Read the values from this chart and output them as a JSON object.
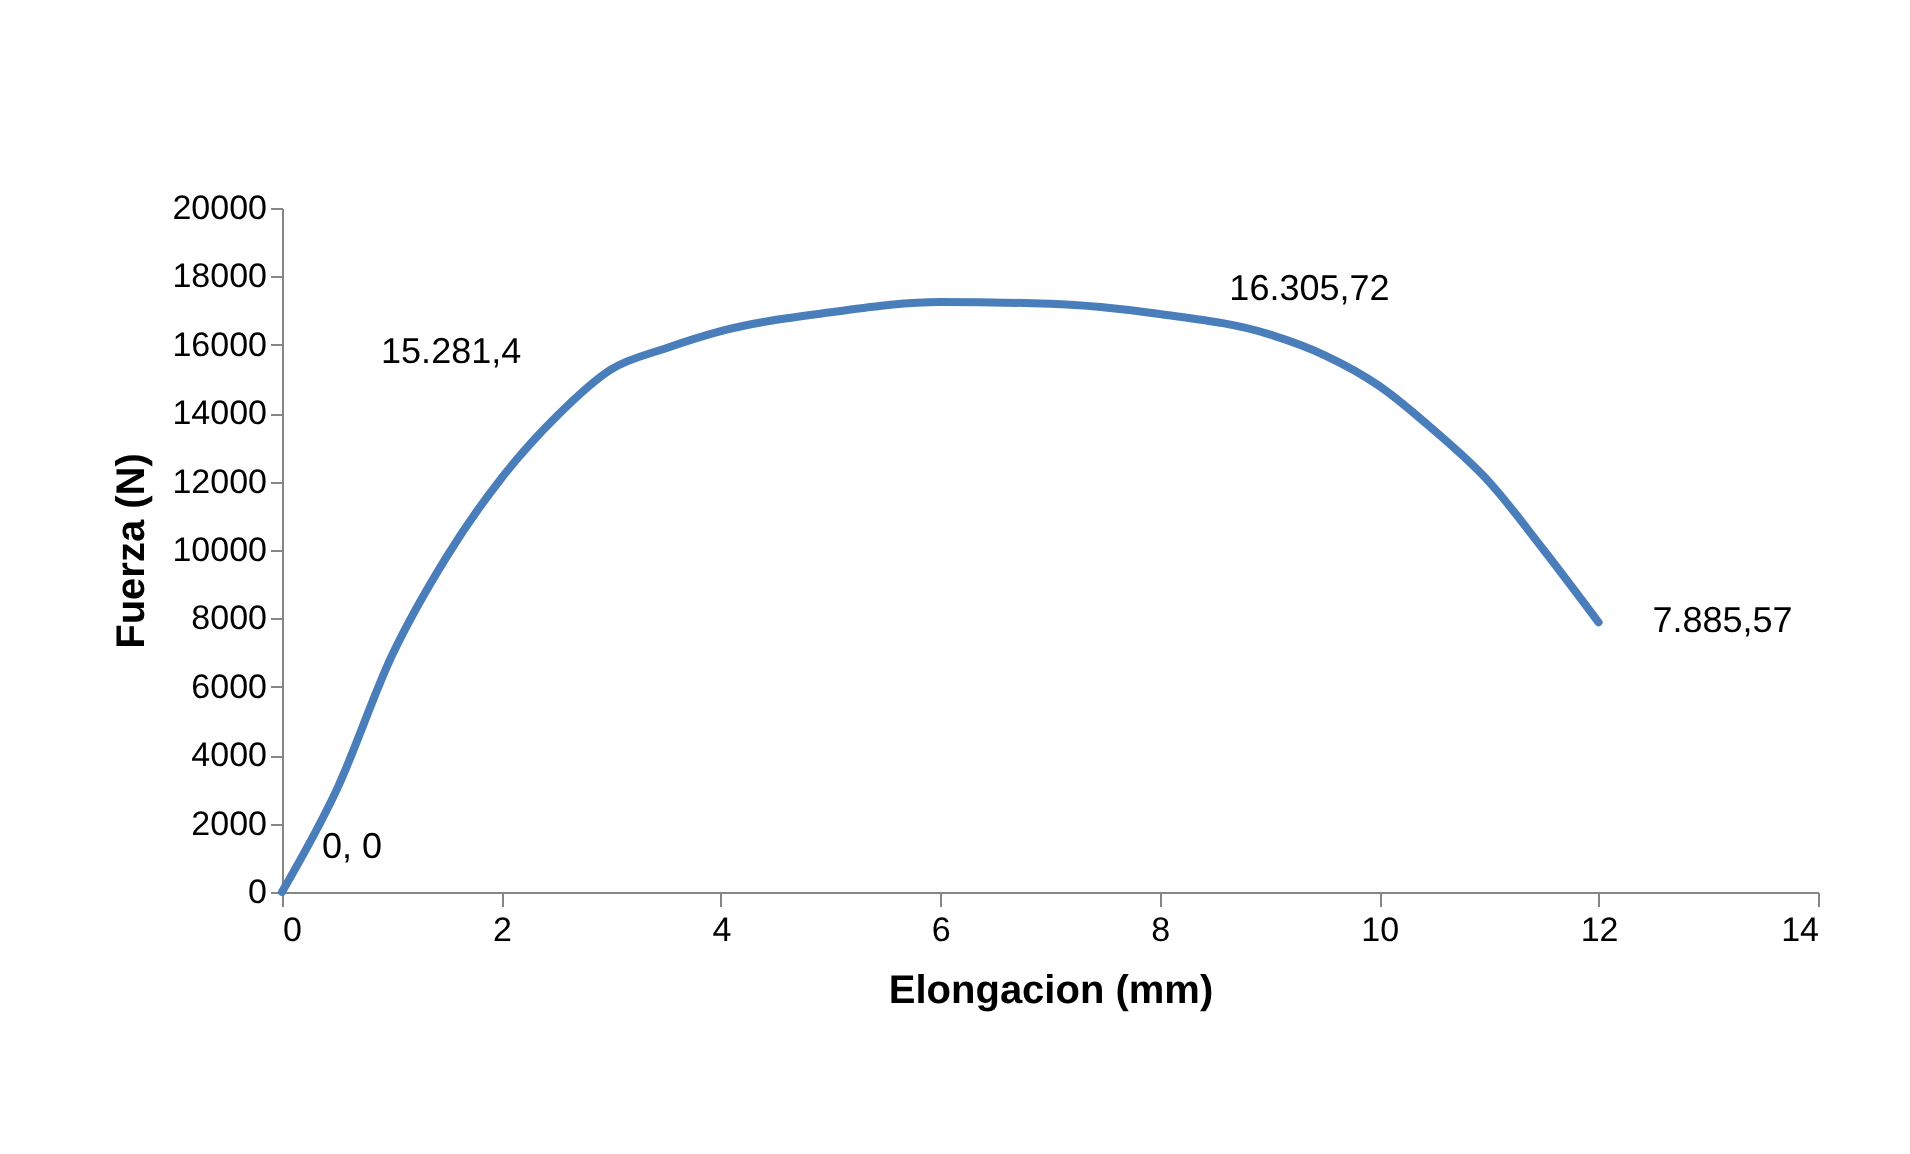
{
  "chart_data": {
    "type": "line",
    "xlabel": "Elongacion (mm)",
    "ylabel": "Fuerza (N)",
    "x": [
      0,
      0.5,
      1,
      1.5,
      2,
      2.5,
      3,
      3.5,
      4,
      5,
      6,
      7,
      8,
      9,
      9.5,
      10,
      10.5,
      11,
      11.5,
      12
    ],
    "series": [
      {
        "color": "#4a7ebb",
        "values": [
          0,
          3000,
          6900,
          9800,
          12100,
          13900,
          15281.4,
          15900,
          16400,
          16950,
          17250,
          17200,
          16900,
          16305.72,
          15700,
          14800,
          13500,
          12000,
          10000,
          7885.57
        ]
      }
    ],
    "annotations": [
      {
        "text": "0, 0",
        "x": 0,
        "y": 0
      },
      {
        "text": "15.281,4",
        "x": 3,
        "y": 15281.4
      },
      {
        "text": "16.305,72",
        "x": 9,
        "y": 16305.72
      },
      {
        "text": "7.885,57",
        "x": 12,
        "y": 7885.57
      }
    ],
    "xlim": [
      0,
      14
    ],
    "xticks": [
      0,
      2,
      4,
      6,
      8,
      10,
      12,
      14
    ],
    "ylim": [
      0,
      20000
    ],
    "yticks": [
      0,
      2000,
      4000,
      6000,
      8000,
      10000,
      12000,
      14000,
      16000,
      18000,
      20000
    ],
    "grid": false,
    "legend": false,
    "marker": "none",
    "line_style": "solid"
  }
}
